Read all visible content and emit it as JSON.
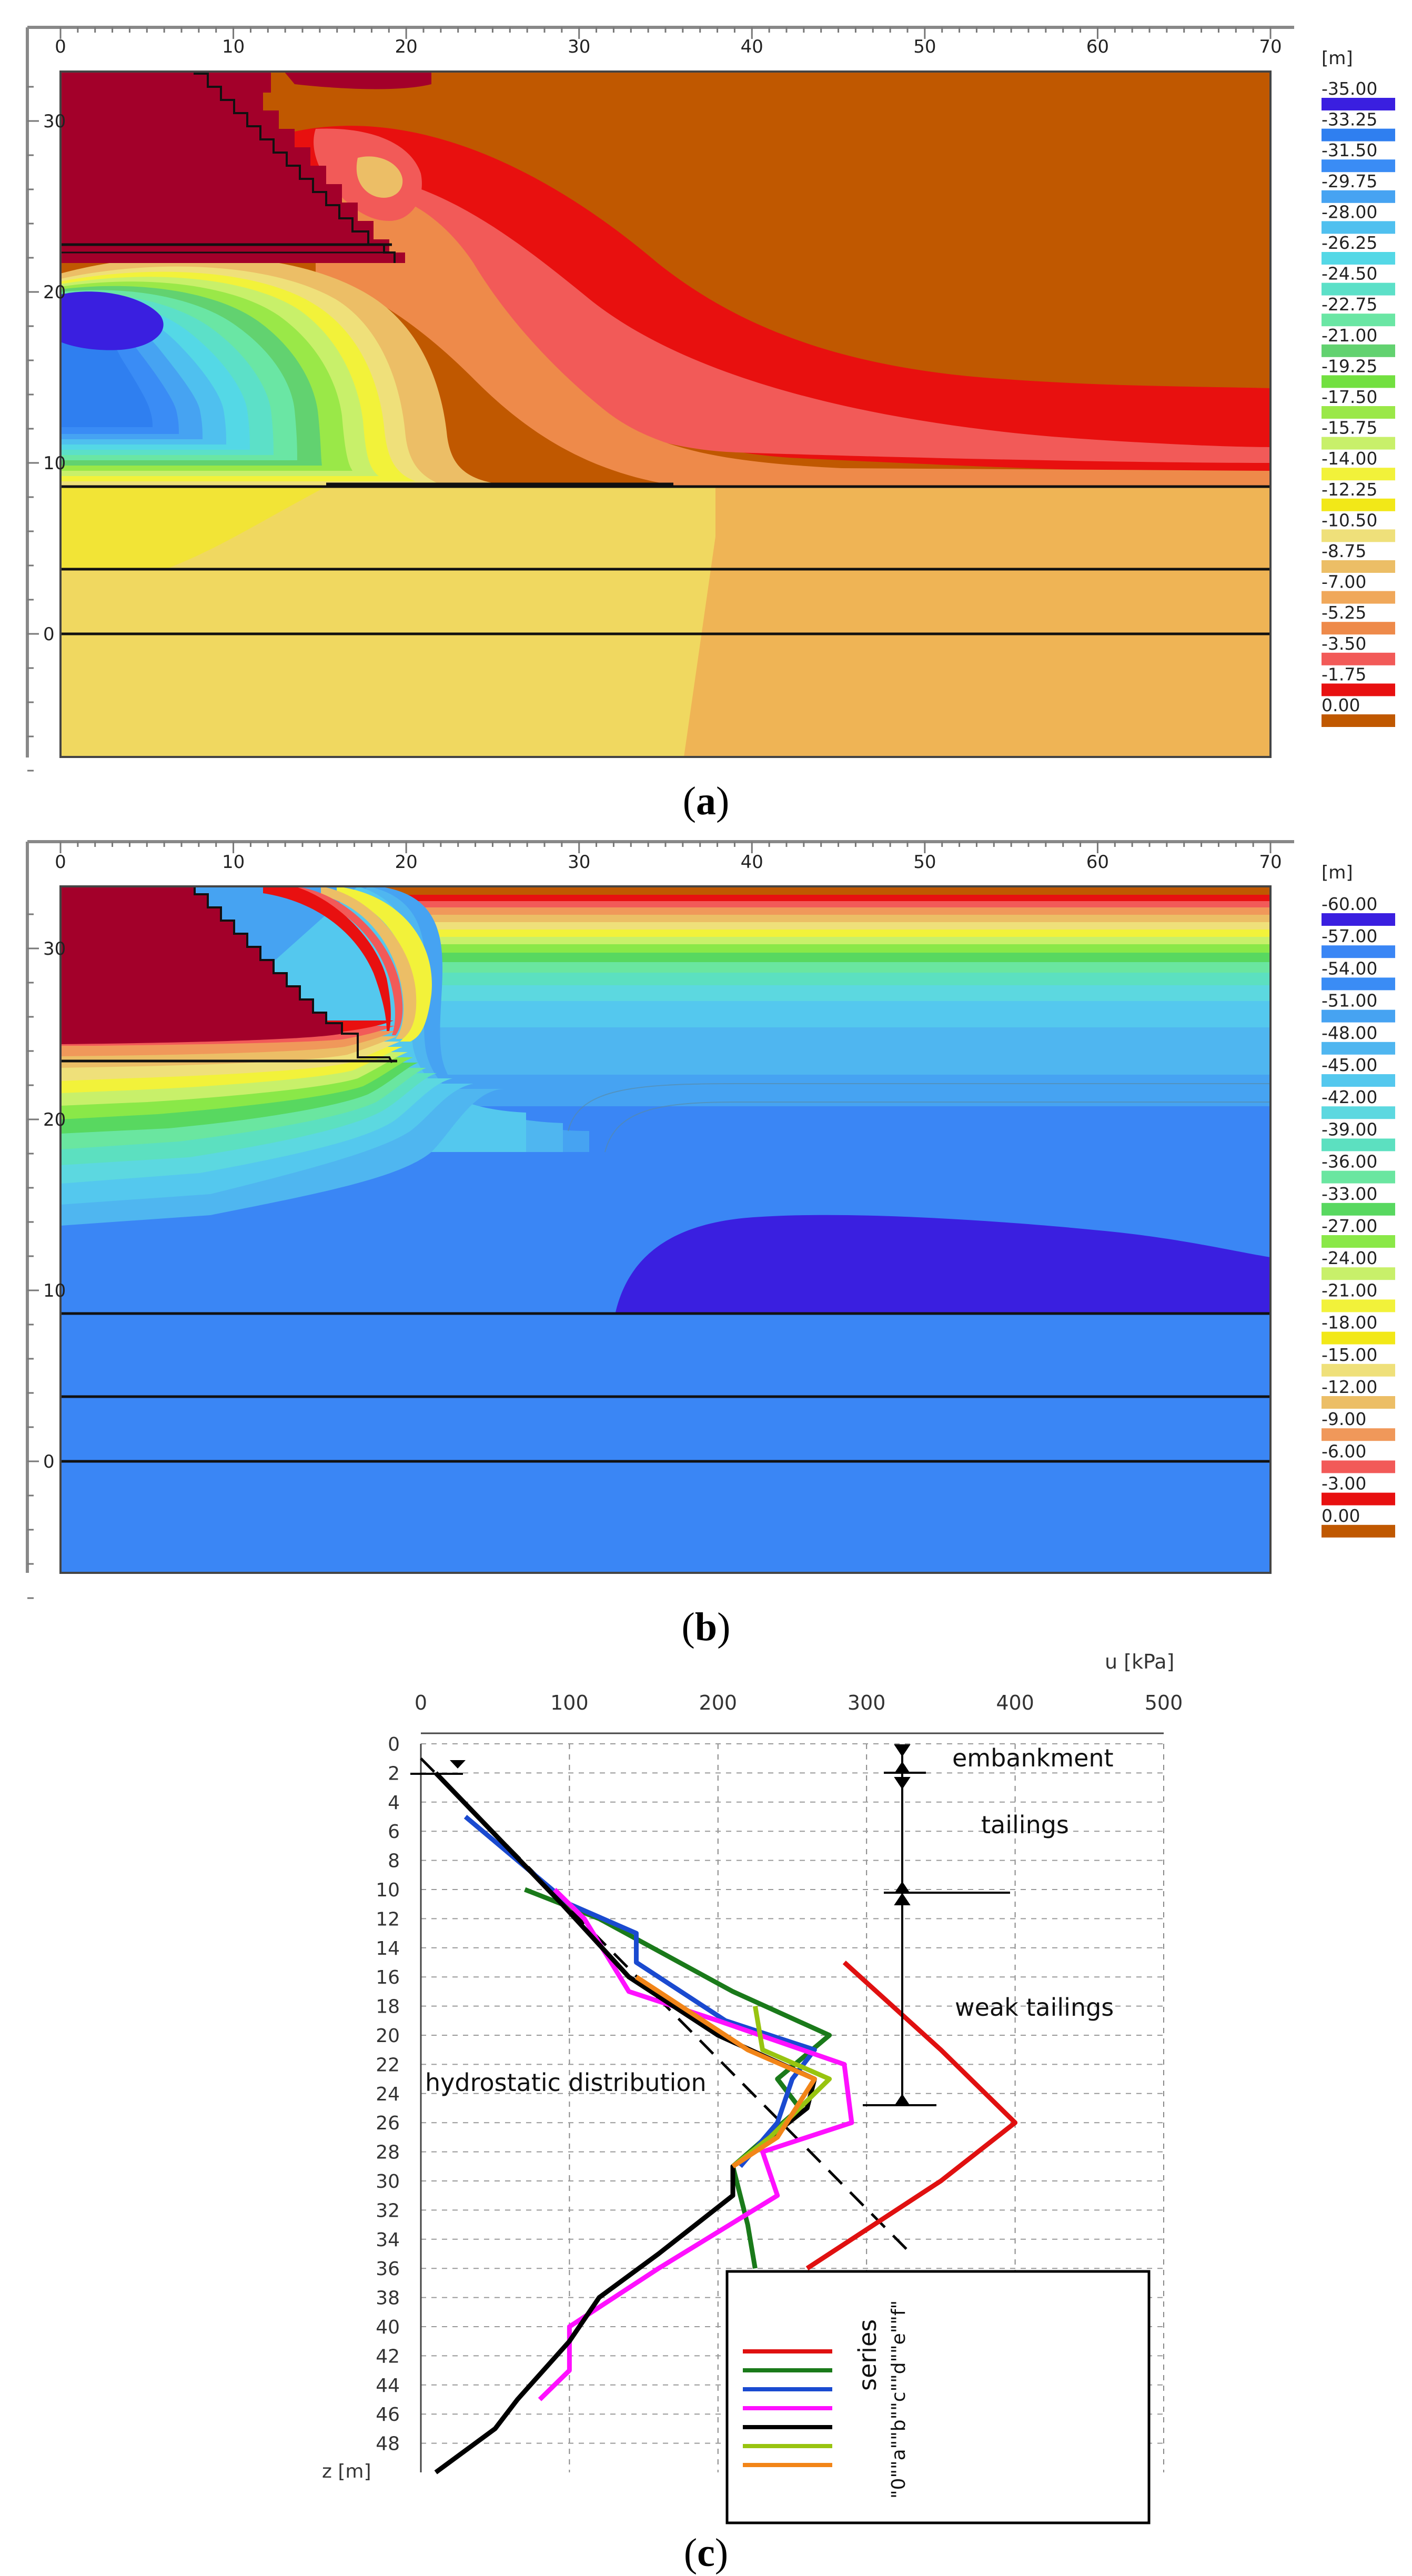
{
  "panel_a": {
    "caption_open": "(",
    "caption_letter": "a",
    "caption_close": ")",
    "legend_unit": "[m]",
    "legend_levels": [
      "-35.00",
      "-33.25",
      "-31.50",
      "-29.75",
      "-28.00",
      "-26.25",
      "-24.50",
      "-22.75",
      "-21.00",
      "-19.25",
      "-17.50",
      "-15.75",
      "-14.00",
      "-12.25",
      "-10.50",
      "-8.75",
      "-7.00",
      "-5.25",
      "-3.50",
      "-1.75",
      "0.00"
    ],
    "legend_colors": [
      "#3a1fe0",
      "#2f7ff0",
      "#3a8cf5",
      "#46a3f2",
      "#4fc0ef",
      "#54d8e6",
      "#5ce0c8",
      "#6ae6a4",
      "#62d270",
      "#72e040",
      "#9ae848",
      "#c8f06a",
      "#f2f23a",
      "#f2e818",
      "#efe07a",
      "#ecbe66",
      "#f0a85a",
      "#ee8a4a",
      "#f25a58",
      "#e81010",
      "#c05800"
    ],
    "x_ticks": [
      "0",
      "10",
      "20",
      "30",
      "40",
      "50",
      "60",
      "70"
    ],
    "y_ticks": [
      "30",
      "20",
      "10",
      "0"
    ]
  },
  "panel_b": {
    "caption_open": "(",
    "caption_letter": "b",
    "caption_close": ")",
    "legend_unit": "[m]",
    "legend_levels": [
      "-60.00",
      "-57.00",
      "-54.00",
      "-51.00",
      "-48.00",
      "-45.00",
      "-42.00",
      "-39.00",
      "-36.00",
      "-33.00",
      "-27.00",
      "-24.00",
      "-21.00",
      "-18.00",
      "-15.00",
      "-12.00",
      "-9.00",
      "-6.00",
      "-3.00",
      "0.00"
    ],
    "legend_colors": [
      "#3a1fe0",
      "#3a86f5",
      "#3a8cf5",
      "#46a3f2",
      "#4fb6f0",
      "#54c8ee",
      "#5cd8e0",
      "#5ce0c0",
      "#6ae6a0",
      "#58d860",
      "#8ae848",
      "#c8f06a",
      "#f2f23a",
      "#f2e818",
      "#efe07a",
      "#ecbe66",
      "#f0985a",
      "#f25a58",
      "#e81010",
      "#c05800"
    ],
    "x_ticks": [
      "0",
      "10",
      "20",
      "30",
      "40",
      "50",
      "60",
      "70"
    ],
    "y_ticks": [
      "30",
      "20",
      "10",
      "0"
    ]
  },
  "panel_c": {
    "caption_open": "(",
    "caption_letter": "c",
    "caption_close": ")",
    "annotations": {
      "embankment": "embankment",
      "tailings": "tailings",
      "weak_tailings": "weak tailings",
      "hydrostatic": "hydrostatic distribution"
    },
    "legend_title": "series",
    "legend_labels_text": "\"0\"\"a\"\"b\"\"c\"\"d\"\"e\"\"f\""
  },
  "chart_data": [
    {
      "type": "heatmap",
      "title": "(a)",
      "xlabel": "",
      "ylabel": "",
      "xlim": [
        0,
        70
      ],
      "ylim": [
        -8,
        33
      ],
      "unit": "[m]",
      "levels": [
        -35.0,
        -33.25,
        -31.5,
        -29.75,
        -28.0,
        -26.25,
        -24.5,
        -22.75,
        -21.0,
        -19.25,
        -17.5,
        -15.75,
        -14.0,
        -12.25,
        -10.5,
        -8.75,
        -7.0,
        -5.25,
        -3.5,
        -1.75,
        0.0
      ]
    },
    {
      "type": "heatmap",
      "title": "(b)",
      "xlabel": "",
      "ylabel": "",
      "xlim": [
        0,
        70
      ],
      "ylim": [
        -8,
        33
      ],
      "unit": "[m]",
      "levels": [
        -60.0,
        -57.0,
        -54.0,
        -51.0,
        -48.0,
        -45.0,
        -42.0,
        -39.0,
        -36.0,
        -33.0,
        -27.0,
        -24.0,
        -21.0,
        -18.0,
        -15.0,
        -12.0,
        -9.0,
        -6.0,
        -3.0,
        0.0
      ]
    },
    {
      "type": "line",
      "title": "(c)",
      "xlabel": "u [kPa]",
      "ylabel": "z [m]",
      "xlim": [
        0,
        500
      ],
      "ylim": [
        0,
        50
      ],
      "x_ticks": [
        0,
        100,
        200,
        300,
        400,
        500
      ],
      "y_ticks": [
        0,
        2,
        4,
        6,
        8,
        10,
        12,
        14,
        16,
        18,
        20,
        22,
        24,
        26,
        28,
        30,
        32,
        34,
        36,
        38,
        40,
        42,
        44,
        46,
        48
      ],
      "series": [
        {
          "name": "\"0\"",
          "color": "#e01010",
          "points": [
            [
              285,
              15
            ],
            [
              350,
              21
            ],
            [
              400,
              26
            ],
            [
              350,
              30
            ],
            [
              260,
              36
            ]
          ]
        },
        {
          "name": "\"a\"",
          "color": "#1a7a1a",
          "points": [
            [
              70,
              10
            ],
            [
              120,
              12
            ],
            [
              210,
              17
            ],
            [
              275,
              20
            ],
            [
              240,
              23
            ],
            [
              255,
              25
            ],
            [
              210,
              29
            ],
            [
              220,
              33
            ],
            [
              225,
              36
            ]
          ]
        },
        {
          "name": "\"b\"",
          "color": "#1a4ad0",
          "points": [
            [
              30,
              5
            ],
            [
              100,
              11
            ],
            [
              145,
              13
            ],
            [
              145,
              15
            ],
            [
              205,
              19
            ],
            [
              265,
              21
            ],
            [
              250,
              23
            ],
            [
              240,
              26
            ],
            [
              215,
              29
            ]
          ]
        },
        {
          "name": "\"c\"",
          "color": "#ff10ff",
          "points": [
            [
              90,
              10
            ],
            [
              110,
              12
            ],
            [
              140,
              17
            ],
            [
              200,
              19
            ],
            [
              285,
              22
            ],
            [
              290,
              26
            ],
            [
              230,
              28
            ],
            [
              240,
              31
            ],
            [
              160,
              36
            ],
            [
              100,
              40
            ],
            [
              100,
              43
            ],
            [
              80,
              45
            ]
          ]
        },
        {
          "name": "\"d\"",
          "color": "#000000",
          "points": [
            [
              10,
              2
            ],
            [
              95,
              11
            ],
            [
              140,
              16
            ],
            [
              200,
              20
            ],
            [
              265,
              23
            ],
            [
              260,
              25
            ],
            [
              210,
              29
            ],
            [
              210,
              31
            ],
            [
              160,
              35
            ],
            [
              120,
              38
            ],
            [
              100,
              41
            ],
            [
              65,
              45
            ],
            [
              50,
              47
            ],
            [
              10,
              50
            ]
          ]
        },
        {
          "name": "\"e\"",
          "color": "#98c410",
          "points": [
            [
              225,
              18
            ],
            [
              230,
              21
            ],
            [
              275,
              23
            ],
            [
              255,
              25
            ],
            [
              235,
              27
            ],
            [
              210,
              29
            ]
          ]
        },
        {
          "name": "\"f\"",
          "color": "#f28518",
          "points": [
            [
              145,
              16
            ],
            [
              220,
              21
            ],
            [
              265,
              23
            ],
            [
              240,
              27
            ],
            [
              210,
              29
            ]
          ]
        }
      ],
      "hydrostatic_line": [
        [
          0,
          1
        ],
        [
          330,
          35
        ]
      ]
    }
  ]
}
